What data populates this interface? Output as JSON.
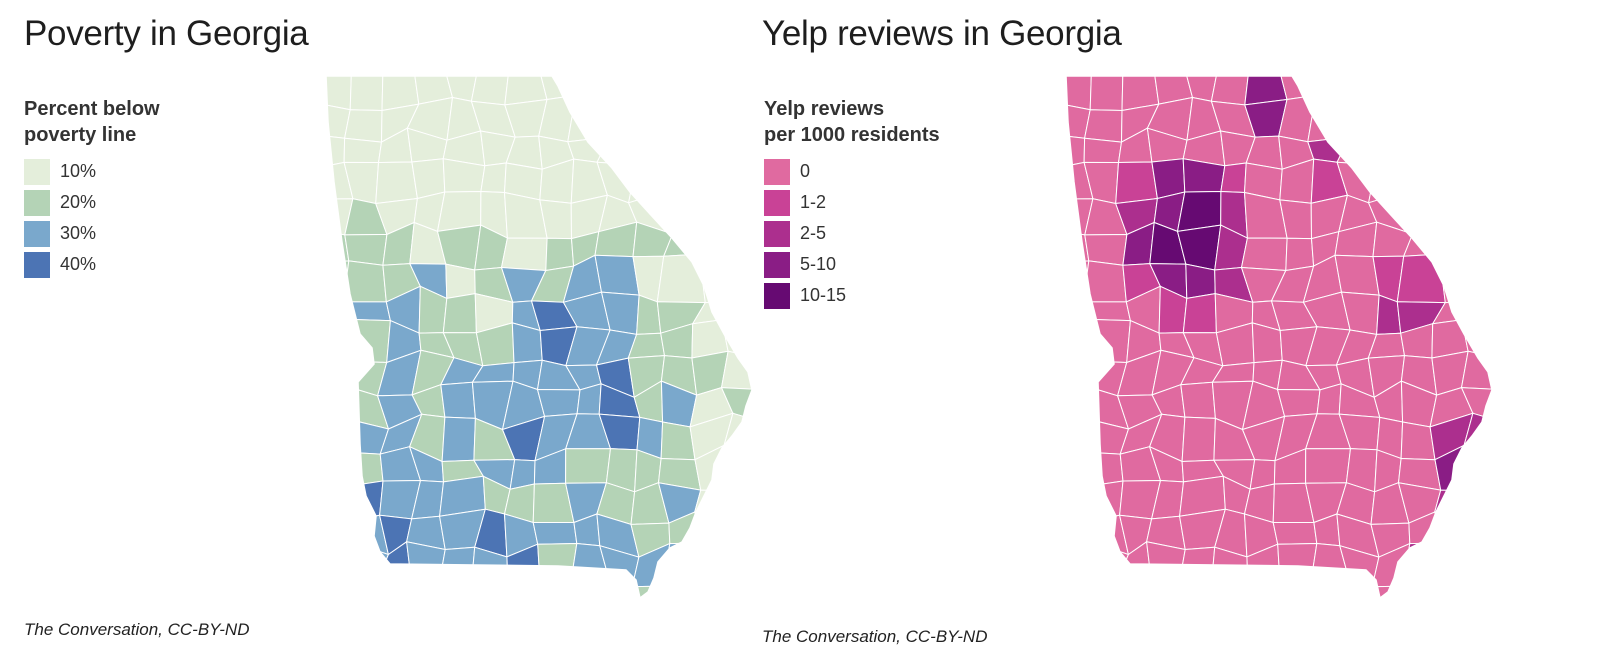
{
  "maps": {
    "poverty": {
      "title": "Poverty in Georgia",
      "legend_title_line1": "Percent below",
      "legend_title_line2": "poverty line",
      "legend": [
        {
          "label": "10%",
          "color": "#e4eedb"
        },
        {
          "label": "20%",
          "color": "#b4d3b6"
        },
        {
          "label": "30%",
          "color": "#7aa8cc"
        },
        {
          "label": "40%",
          "color": "#4c74b4"
        }
      ],
      "source": "The Conversation, CC-BY-ND"
    },
    "yelp": {
      "title": "Yelp reviews in Georgia",
      "legend_title_line1": "Yelp reviews",
      "legend_title_line2": "per 1000 residents",
      "legend": [
        {
          "label": "0",
          "color": "#e06aa0"
        },
        {
          "label": "1-2",
          "color": "#c94296"
        },
        {
          "label": "2-5",
          "color": "#ac2f8e"
        },
        {
          "label": "5-10",
          "color": "#8a1d85"
        },
        {
          "label": "10-15",
          "color": "#660a72"
        }
      ],
      "source": "The Conversation, CC-BY-ND"
    }
  }
}
